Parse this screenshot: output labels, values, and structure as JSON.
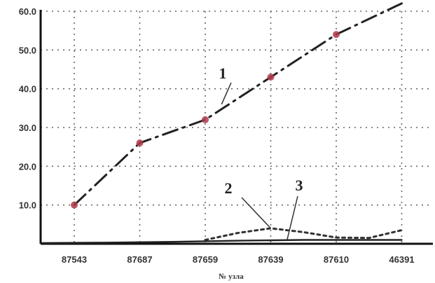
{
  "chart_data": {
    "type": "line",
    "categories": [
      "87543",
      "87687",
      "87659",
      "87639",
      "87610",
      "46391"
    ],
    "xlabel": "№ узла",
    "ylabel": "",
    "title": "",
    "ylim": [
      0,
      60
    ],
    "yticks": [
      "10.0",
      "20.0",
      "30.0",
      "40.0",
      "50.0",
      "60.0"
    ],
    "grid": true,
    "series": [
      {
        "name": "1",
        "style": "dash-dot",
        "color": "#222222",
        "marker_color": "#b03a4a",
        "x": [
          0.0,
          1.0,
          2.0,
          3.0,
          4.0,
          5.0
        ],
        "y": [
          10.0,
          26.0,
          32.0,
          43.0,
          54.0,
          62.0
        ]
      },
      {
        "name": "2",
        "style": "dotted",
        "color": "#333333",
        "x": [
          2.0,
          2.5,
          3.0,
          3.5,
          4.0,
          4.5,
          5.0
        ],
        "y": [
          1.0,
          2.8,
          4.0,
          3.0,
          1.6,
          1.5,
          3.5
        ]
      },
      {
        "name": "3",
        "style": "solid",
        "color": "#222222",
        "x": [
          -0.5,
          0.5,
          1.5,
          2.5,
          3.5,
          4.5,
          5.0
        ],
        "y": [
          0.2,
          0.3,
          0.5,
          0.8,
          1.0,
          1.0,
          1.0
        ]
      }
    ],
    "annotations": [
      {
        "text": "1",
        "target_series": 0,
        "target_x": 2.25,
        "target_y": 36.0
      },
      {
        "text": "2",
        "target_series": 1,
        "target_x": 3.0,
        "target_y": 4.0
      },
      {
        "text": "3",
        "target_series": 2,
        "target_x": 3.25,
        "target_y": 1.0
      }
    ]
  }
}
